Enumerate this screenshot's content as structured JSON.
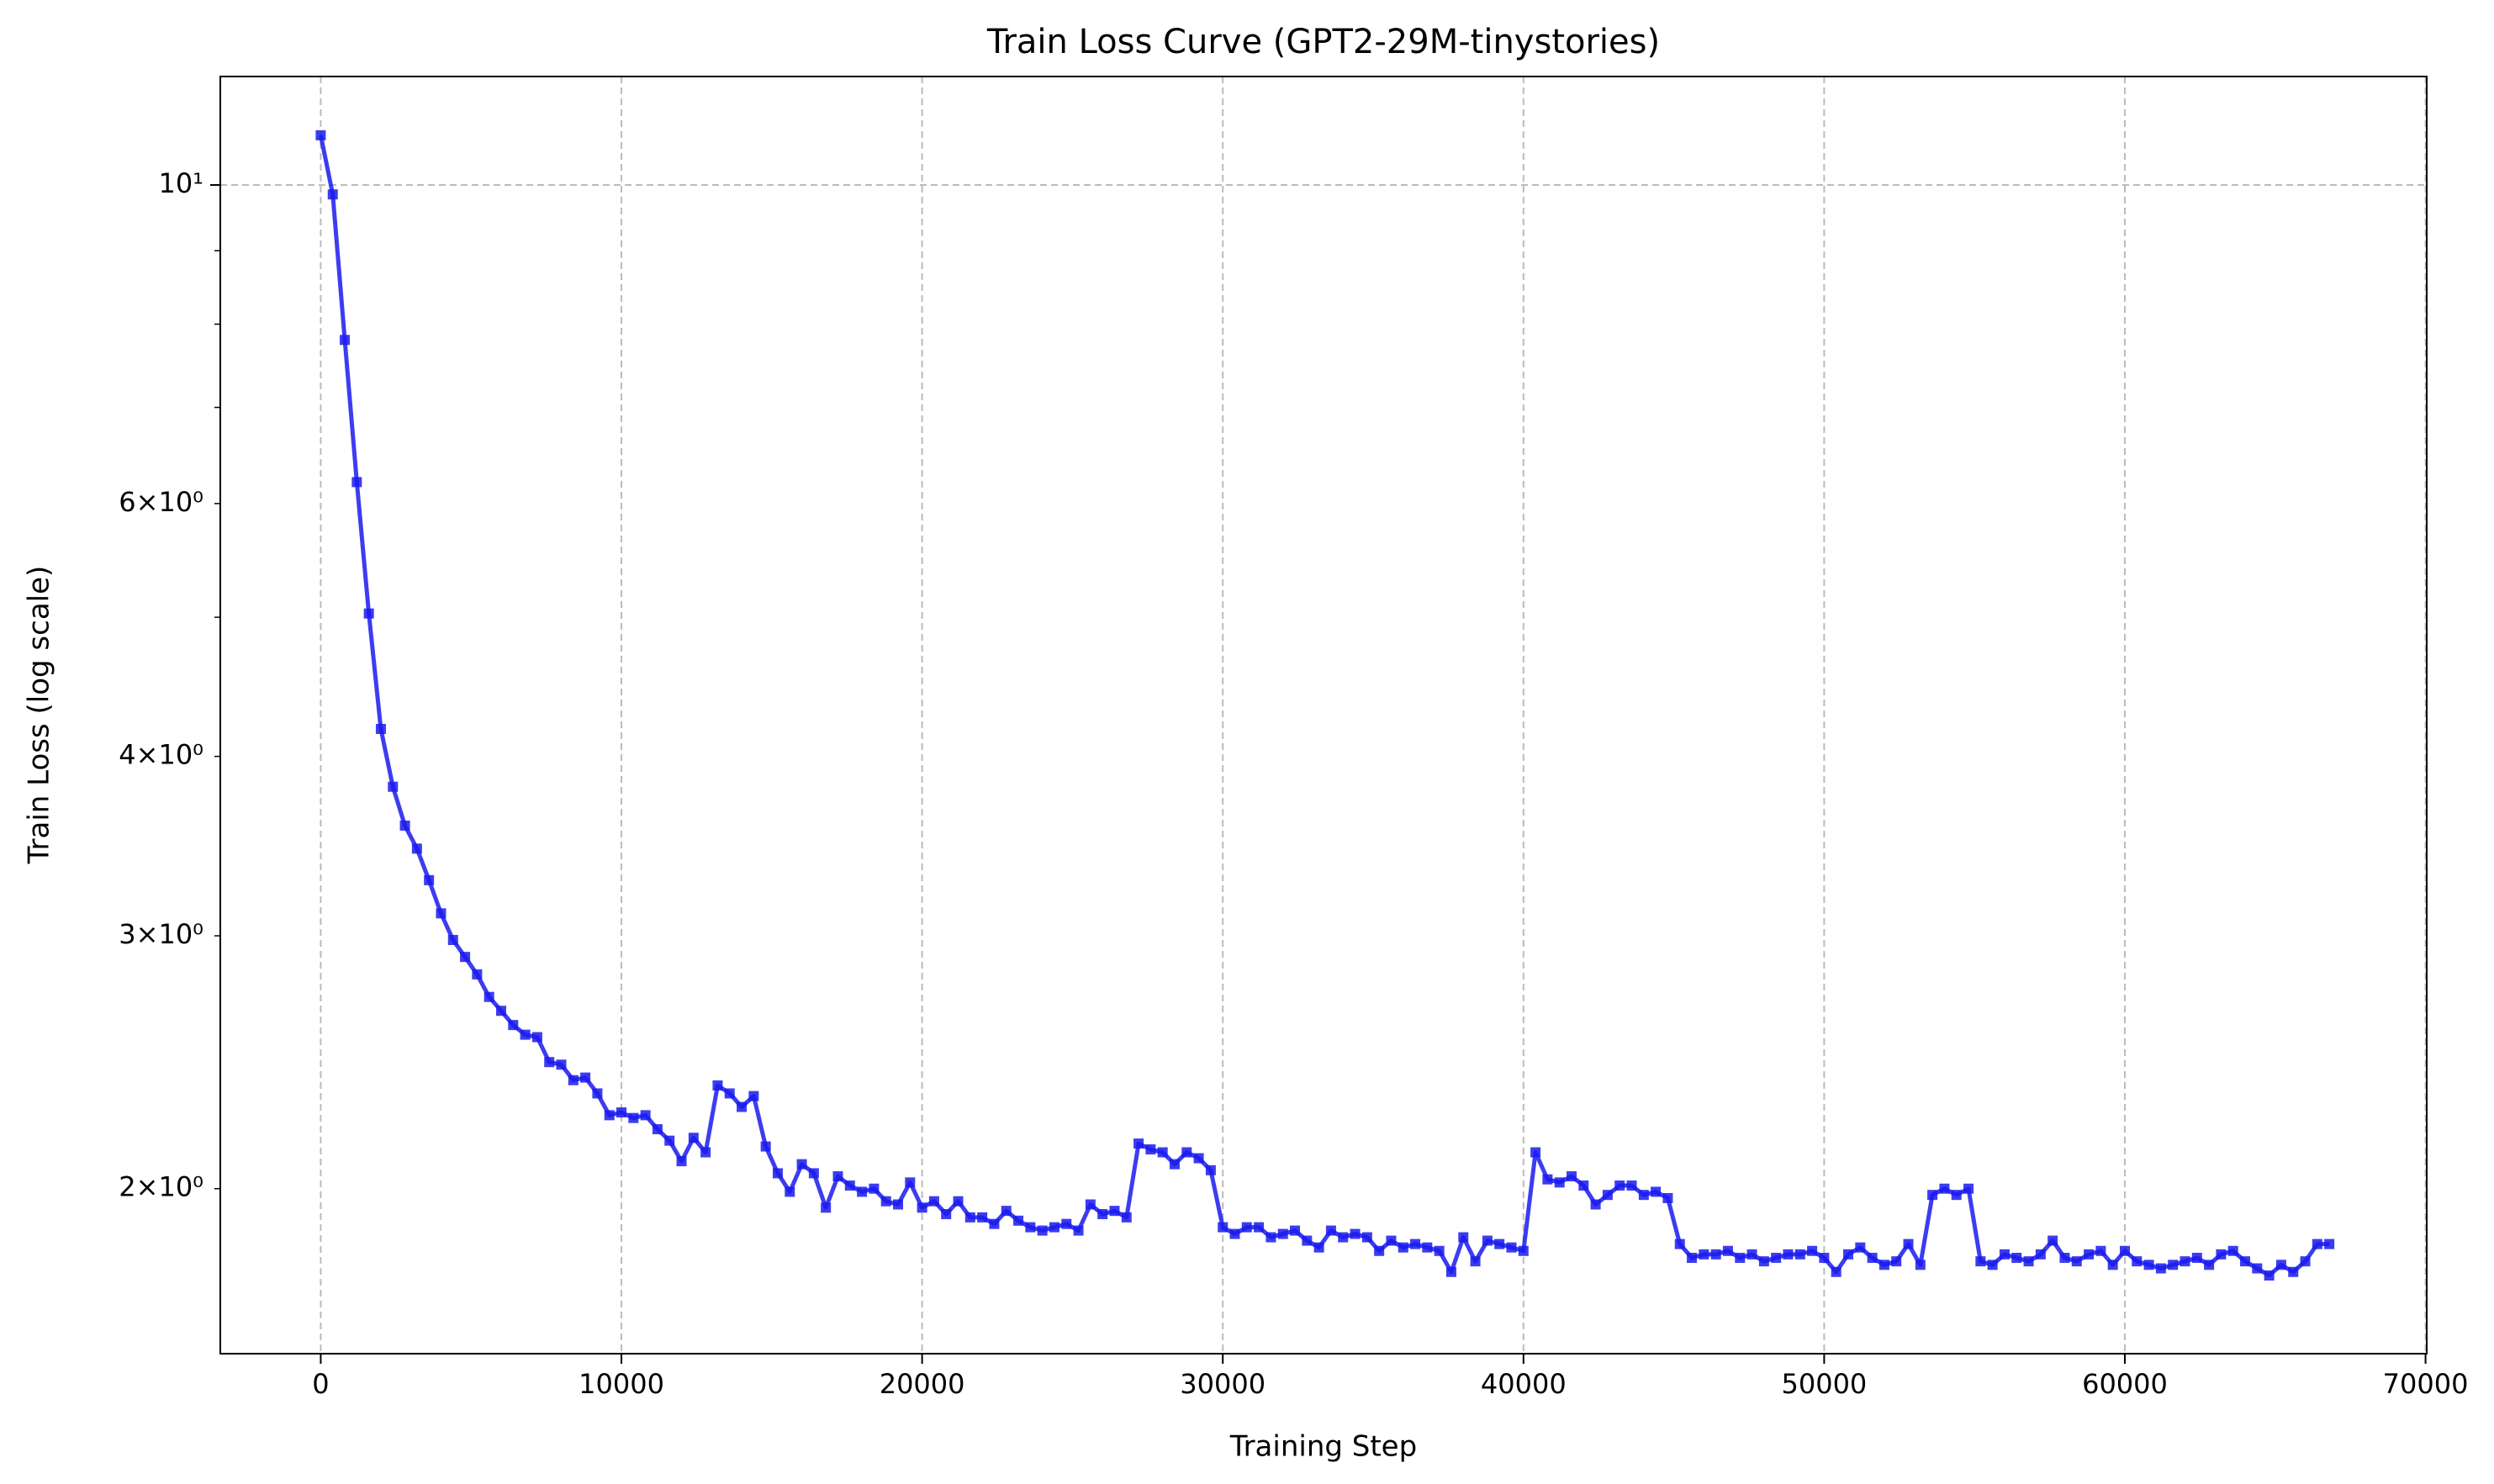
{
  "chart_data": {
    "type": "line",
    "title": "Train Loss Curve (GPT2-29M-tinystories)",
    "x_label": "Training Step",
    "y_label": "Train Loss (log scale)",
    "y_scale": "log",
    "grid": true,
    "color": "#1a1aee",
    "xlim": [
      -3340,
      70040
    ],
    "ylim": [
      1.535,
      11.9
    ],
    "xticks": [
      0,
      10000,
      20000,
      30000,
      40000,
      50000,
      60000,
      70000
    ],
    "yticks": [
      {
        "value": 10,
        "label": "10¹"
      }
    ],
    "yminorticks": [
      {
        "value": 2,
        "label": "2×10⁰"
      },
      {
        "value": 3,
        "label": "3×10⁰"
      },
      {
        "value": 4,
        "label": "4×10⁰"
      },
      5,
      {
        "value": 6,
        "label": "6×10⁰"
      },
      7,
      8,
      9
    ],
    "x": [
      0,
      400,
      800,
      1200,
      1600,
      2000,
      2400,
      2800,
      3200,
      3600,
      4000,
      4400,
      4800,
      5200,
      5600,
      6000,
      6400,
      6800,
      7200,
      7600,
      8000,
      8400,
      8800,
      9200,
      9600,
      10000,
      10400,
      10800,
      11200,
      11600,
      12000,
      12400,
      12800,
      13200,
      13600,
      14000,
      14400,
      14800,
      15200,
      15600,
      16000,
      16400,
      16800,
      17200,
      17600,
      18000,
      18400,
      18800,
      19200,
      19600,
      20000,
      20400,
      20800,
      21200,
      21600,
      22000,
      22400,
      22800,
      23200,
      23600,
      24000,
      24400,
      24800,
      25200,
      25600,
      26000,
      26400,
      26800,
      27200,
      27600,
      28000,
      28400,
      28800,
      29200,
      29600,
      30000,
      30400,
      30800,
      31200,
      31600,
      32000,
      32400,
      32800,
      33200,
      33600,
      34000,
      34400,
      34800,
      35200,
      35600,
      36000,
      36400,
      36800,
      37200,
      37600,
      38000,
      38400,
      38800,
      39200,
      39600,
      40000,
      40400,
      40800,
      41200,
      41600,
      42000,
      42400,
      42800,
      43200,
      43600,
      44000,
      44400,
      44800,
      45200,
      45600,
      46000,
      46400,
      46800,
      47200,
      47600,
      48000,
      48400,
      48800,
      49200,
      49600,
      50000,
      50400,
      50800,
      51200,
      51600,
      52000,
      52400,
      52800,
      53200,
      53600,
      54000,
      54400,
      54800,
      55200,
      55600,
      56000,
      56400,
      56800,
      57200,
      57600,
      58000,
      58400,
      58800,
      59200,
      59600,
      60000,
      60400,
      60800,
      61200,
      61600,
      62000,
      62400,
      62800,
      63200,
      63600,
      64000,
      64400,
      64800,
      65200,
      65600,
      66000,
      66400,
      66800
    ],
    "values": [
      10.83,
      9.85,
      7.8,
      6.21,
      5.03,
      4.18,
      3.81,
      3.58,
      3.45,
      3.28,
      3.11,
      2.98,
      2.9,
      2.82,
      2.72,
      2.66,
      2.6,
      2.56,
      2.55,
      2.45,
      2.44,
      2.38,
      2.39,
      2.33,
      2.25,
      2.26,
      2.24,
      2.25,
      2.2,
      2.16,
      2.09,
      2.17,
      2.12,
      2.36,
      2.33,
      2.28,
      2.32,
      2.14,
      2.05,
      1.99,
      2.08,
      2.05,
      1.94,
      2.04,
      2.01,
      1.99,
      2.0,
      1.96,
      1.95,
      2.02,
      1.94,
      1.96,
      1.92,
      1.96,
      1.91,
      1.91,
      1.89,
      1.93,
      1.9,
      1.88,
      1.87,
      1.88,
      1.89,
      1.87,
      1.95,
      1.92,
      1.93,
      1.91,
      2.15,
      2.13,
      2.12,
      2.08,
      2.12,
      2.1,
      2.06,
      1.88,
      1.86,
      1.88,
      1.88,
      1.85,
      1.86,
      1.87,
      1.84,
      1.82,
      1.87,
      1.85,
      1.86,
      1.85,
      1.81,
      1.84,
      1.82,
      1.83,
      1.82,
      1.81,
      1.75,
      1.85,
      1.78,
      1.84,
      1.83,
      1.82,
      1.81,
      2.12,
      2.03,
      2.02,
      2.04,
      2.01,
      1.95,
      1.98,
      2.01,
      2.01,
      1.98,
      1.99,
      1.97,
      1.83,
      1.79,
      1.8,
      1.8,
      1.81,
      1.79,
      1.8,
      1.78,
      1.79,
      1.8,
      1.8,
      1.81,
      1.79,
      1.75,
      1.8,
      1.82,
      1.79,
      1.77,
      1.78,
      1.83,
      1.77,
      1.98,
      2.0,
      1.98,
      2.0,
      1.78,
      1.77,
      1.8,
      1.79,
      1.78,
      1.8,
      1.84,
      1.79,
      1.78,
      1.8,
      1.81,
      1.77,
      1.81,
      1.78,
      1.77,
      1.76,
      1.77,
      1.78,
      1.79,
      1.77,
      1.8,
      1.81,
      1.78,
      1.76,
      1.74,
      1.77,
      1.75,
      1.78,
      1.83,
      1.83
    ]
  }
}
